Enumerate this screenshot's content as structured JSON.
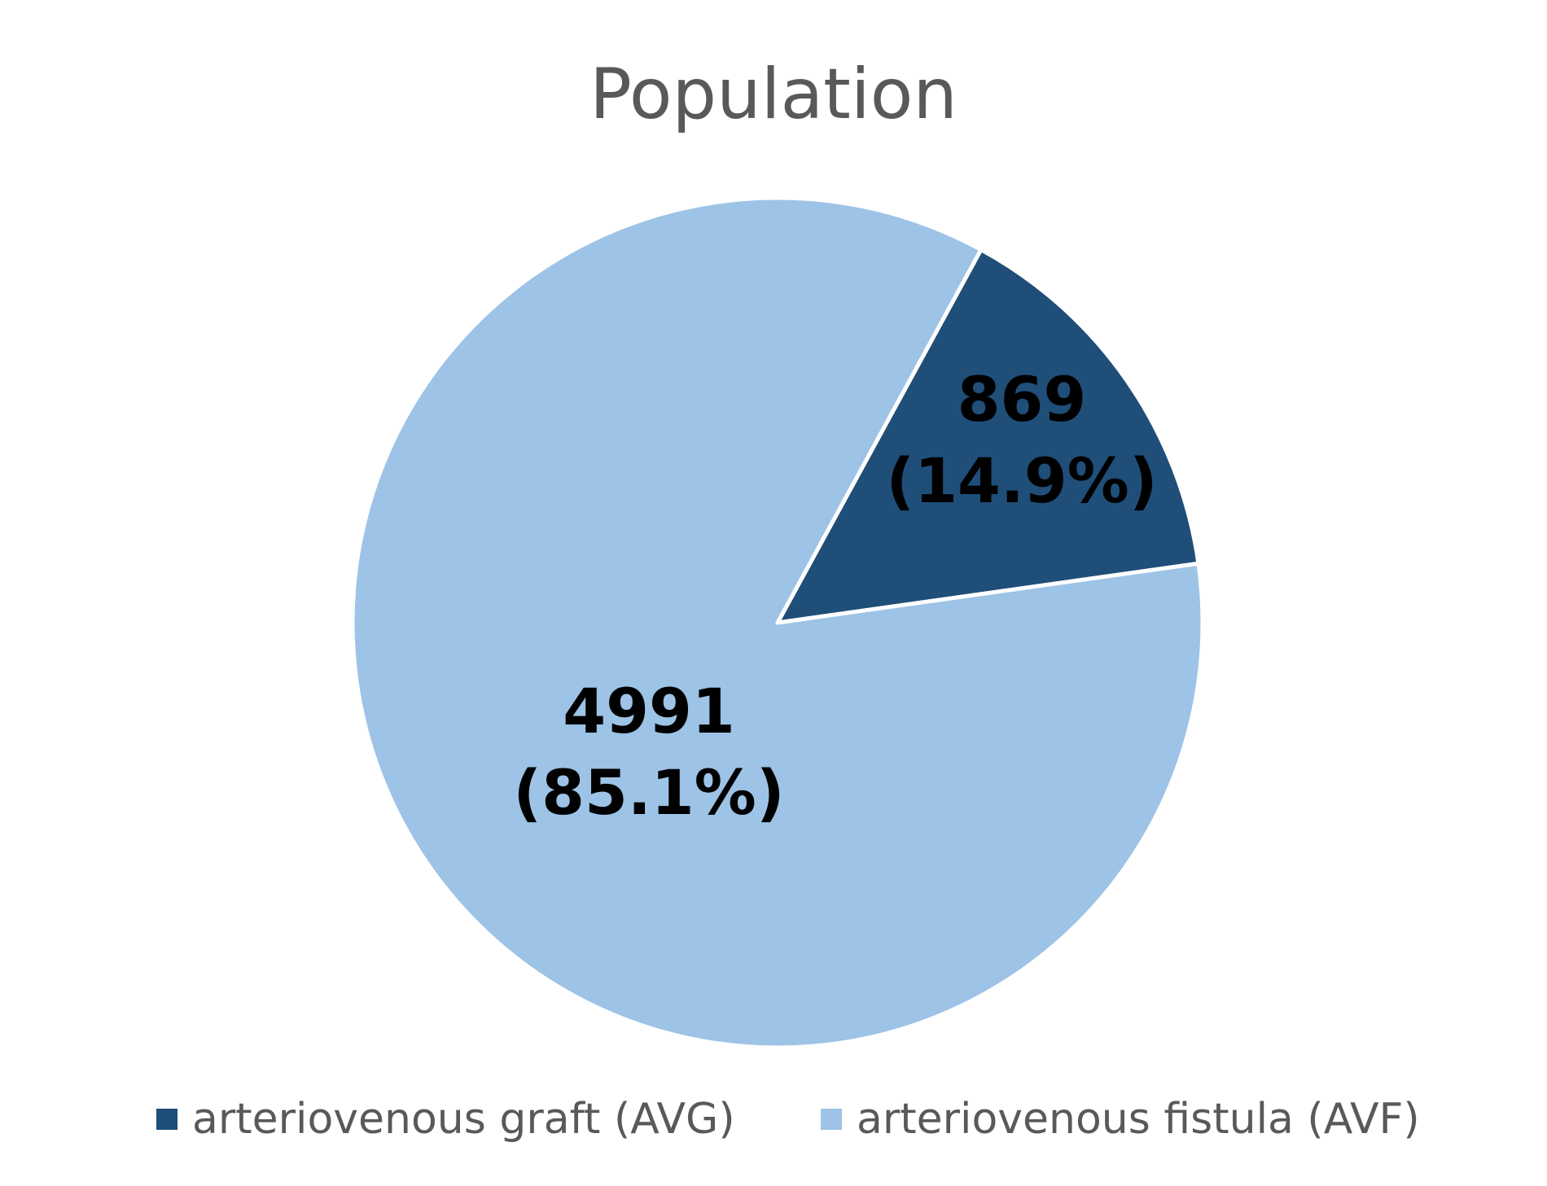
{
  "chart_data": {
    "type": "pie",
    "title": "Population",
    "slices": [
      {
        "label": "arteriovenous graft (AVG)",
        "value": 869,
        "percent_label": "(14.9%)",
        "color": "#1f4e79"
      },
      {
        "label": "arteriovenous fistula (AVF)",
        "value": 4991,
        "percent_label": "(85.1%)",
        "color": "#9dc3e6"
      }
    ],
    "legend_position": "bottom",
    "border_color": "#ffffff"
  }
}
